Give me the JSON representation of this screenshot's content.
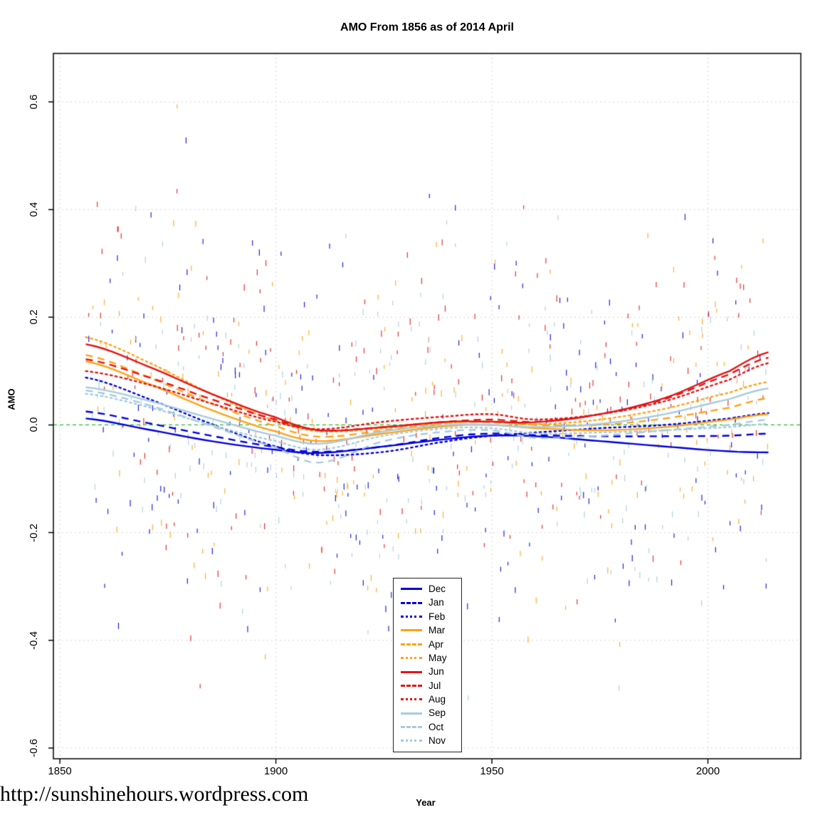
{
  "watermark": "http://sunshinehours.wordpress.com",
  "chart_data": {
    "type": "line",
    "title": "AMO From 1856 as of 2014 April",
    "xlabel": "Year",
    "ylabel": "AMO",
    "x_ticks": [
      1850,
      1900,
      1950,
      2000
    ],
    "y_ticks": [
      -0.6,
      -0.4,
      -0.2,
      0.0,
      0.2,
      0.4,
      0.6
    ],
    "x_range": [
      1848.5,
      2021.5
    ],
    "y_range": [
      -0.62,
      0.69
    ],
    "grid": true,
    "grid_color": "#d4d4d4",
    "zero_line": {
      "value": 0.0,
      "color": "#2db82d",
      "style": "dashed"
    },
    "legend_position": "inside-bottom-center",
    "control_years": [
      1856,
      1870,
      1885,
      1900,
      1910,
      1925,
      1940,
      1950,
      1960,
      1975,
      1990,
      2005,
      2014
    ],
    "series": [
      {
        "name": "Dec",
        "color": "#0000dd",
        "dash": "solid",
        "values": [
          0.012,
          -0.008,
          -0.03,
          -0.046,
          -0.052,
          -0.04,
          -0.026,
          -0.02,
          -0.021,
          -0.03,
          -0.04,
          -0.049,
          -0.051
        ]
      },
      {
        "name": "Jan",
        "color": "#0000dd",
        "dash": "dashed",
        "values": [
          0.025,
          0.004,
          -0.02,
          -0.041,
          -0.05,
          -0.04,
          -0.022,
          -0.016,
          -0.019,
          -0.021,
          -0.021,
          -0.02,
          -0.016
        ]
      },
      {
        "name": "Feb",
        "color": "#0000dd",
        "dash": "dotted",
        "values": [
          0.088,
          0.05,
          0.002,
          -0.04,
          -0.056,
          -0.05,
          -0.03,
          -0.02,
          -0.014,
          -0.006,
          0.0,
          0.012,
          0.022
        ]
      },
      {
        "name": "Mar",
        "color": "#ffa216",
        "dash": "solid",
        "values": [
          0.118,
          0.078,
          0.028,
          -0.012,
          -0.03,
          -0.016,
          -0.002,
          0.0,
          -0.006,
          -0.01,
          -0.004,
          0.01,
          0.02
        ]
      },
      {
        "name": "Apr",
        "color": "#ffa216",
        "dash": "dashed",
        "values": [
          0.13,
          0.09,
          0.04,
          -0.002,
          -0.022,
          -0.01,
          0.004,
          0.005,
          0.0,
          0.0,
          0.012,
          0.032,
          0.05
        ]
      },
      {
        "name": "May",
        "color": "#ffa216",
        "dash": "dotted",
        "values": [
          0.163,
          0.118,
          0.058,
          0.008,
          -0.012,
          -0.006,
          0.004,
          0.006,
          0.001,
          0.01,
          0.03,
          0.06,
          0.08
        ]
      },
      {
        "name": "Jun",
        "color": "#e41414",
        "dash": "solid",
        "values": [
          0.15,
          0.11,
          0.058,
          0.014,
          -0.01,
          -0.004,
          0.006,
          0.006,
          0.005,
          0.02,
          0.05,
          0.1,
          0.135
        ]
      },
      {
        "name": "Jul",
        "color": "#e41414",
        "dash": "dashed",
        "values": [
          0.122,
          0.09,
          0.048,
          0.01,
          -0.01,
          -0.004,
          0.006,
          0.01,
          0.006,
          0.02,
          0.048,
          0.094,
          0.125
        ]
      },
      {
        "name": "Aug",
        "color": "#e41414",
        "dash": "dotted",
        "values": [
          0.1,
          0.076,
          0.04,
          0.006,
          -0.008,
          0.006,
          0.016,
          0.02,
          0.01,
          0.02,
          0.044,
          0.084,
          0.115
        ]
      },
      {
        "name": "Sep",
        "color": "#a6cbdd",
        "dash": "solid",
        "values": [
          0.07,
          0.046,
          0.012,
          -0.02,
          -0.035,
          -0.012,
          0.0,
          0.0,
          -0.004,
          0.002,
          0.02,
          0.048,
          0.068
        ]
      },
      {
        "name": "Oct",
        "color": "#a6cbdd",
        "dash": "dashed",
        "values": [
          0.064,
          0.038,
          -0.002,
          -0.042,
          -0.07,
          -0.03,
          -0.012,
          -0.01,
          -0.024,
          -0.02,
          -0.01,
          0.0,
          0.01
        ]
      },
      {
        "name": "Nov",
        "color": "#a6cbdd",
        "dash": "dotted",
        "values": [
          0.058,
          0.034,
          0.0,
          -0.03,
          -0.046,
          -0.02,
          -0.006,
          -0.006,
          -0.016,
          -0.014,
          -0.01,
          -0.004,
          0.002
        ]
      }
    ],
    "scatter": {
      "style": "vertical-tick",
      "seed": 11,
      "probability": 0.42,
      "sd": 0.17,
      "year_start": 1856,
      "year_end": 2013
    }
  }
}
